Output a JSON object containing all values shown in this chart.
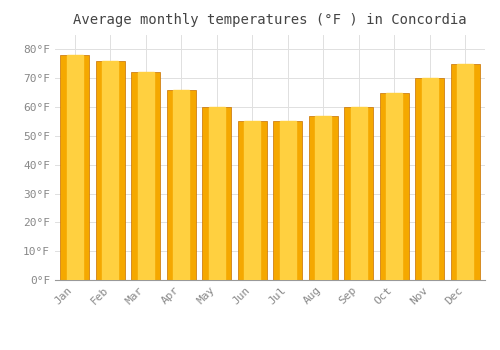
{
  "title": "Average monthly temperatures (°F ) in Concordia",
  "months": [
    "Jan",
    "Feb",
    "Mar",
    "Apr",
    "May",
    "Jun",
    "Jul",
    "Aug",
    "Sep",
    "Oct",
    "Nov",
    "Dec"
  ],
  "values": [
    78,
    76,
    72,
    66,
    60,
    55,
    55,
    57,
    60,
    65,
    70,
    75
  ],
  "bar_color_outer": "#F5A800",
  "bar_color_inner": "#FFD040",
  "bar_edge_color": "#C87000",
  "background_color": "#FFFFFF",
  "grid_color": "#E0E0E0",
  "tick_label_color": "#888888",
  "title_color": "#444444",
  "ylim": [
    0,
    85
  ],
  "yticks": [
    0,
    10,
    20,
    30,
    40,
    50,
    60,
    70,
    80
  ],
  "ytick_labels": [
    "0°F",
    "10°F",
    "20°F",
    "30°F",
    "40°F",
    "50°F",
    "60°F",
    "70°F",
    "80°F"
  ],
  "title_fontsize": 10,
  "tick_fontsize": 8,
  "bar_width": 0.82
}
